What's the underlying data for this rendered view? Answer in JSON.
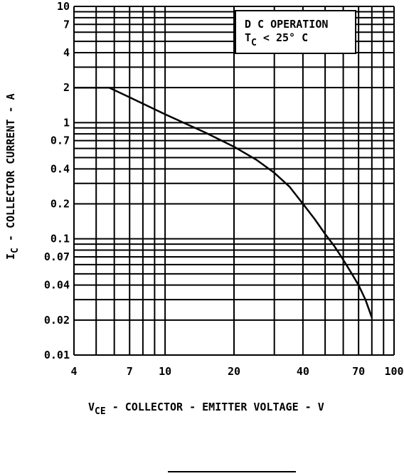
{
  "chart_data": {
    "type": "line",
    "x_scale": "log",
    "y_scale": "log",
    "xlim": [
      4,
      100
    ],
    "ylim": [
      0.01,
      10
    ],
    "grid": true,
    "x_ticks": [
      4,
      7,
      10,
      20,
      40,
      70,
      100
    ],
    "x_tick_labels": [
      "4",
      "7",
      "10",
      "20",
      "40",
      "70",
      "100"
    ],
    "x_grid": [
      4,
      5,
      6,
      7,
      8,
      9,
      10,
      20,
      30,
      40,
      50,
      60,
      70,
      80,
      90,
      100
    ],
    "y_ticks": [
      0.01,
      0.02,
      0.04,
      0.07,
      0.1,
      0.2,
      0.4,
      0.7,
      1,
      2,
      4,
      7,
      10
    ],
    "y_tick_labels": [
      "0.01",
      "0.02",
      "0.04",
      "0.07",
      "0.1",
      "0.2",
      "0.4",
      "0.7",
      "1",
      "2",
      "4",
      "7",
      "10"
    ],
    "y_grid": [
      0.01,
      0.02,
      0.03,
      0.04,
      0.05,
      0.06,
      0.07,
      0.08,
      0.09,
      0.1,
      0.2,
      0.3,
      0.4,
      0.5,
      0.6,
      0.7,
      0.8,
      0.9,
      1,
      2,
      3,
      4,
      5,
      6,
      7,
      8,
      9,
      10
    ],
    "xlabel": {
      "main": "V",
      "sub": "CE",
      "rest": " - COLLECTOR - EMITTER VOLTAGE - V"
    },
    "ylabel": {
      "main": "I",
      "sub": "C",
      "rest": " - COLLECTOR CURRENT - A"
    },
    "annotation": {
      "line1": "D C OPERATION",
      "line2_main": "T",
      "line2_sub": "C",
      "line2_rest": " < 25° C"
    },
    "series": [
      {
        "x": [
          4,
          5.7,
          7,
          10,
          15,
          20,
          25,
          30,
          35,
          40,
          45,
          50,
          55,
          60,
          65,
          70,
          75,
          80
        ],
        "y": [
          2.0,
          2.0,
          1.65,
          1.18,
          0.82,
          0.62,
          0.48,
          0.37,
          0.28,
          0.2,
          0.148,
          0.11,
          0.086,
          0.066,
          0.051,
          0.04,
          0.03,
          0.021
        ]
      }
    ]
  }
}
